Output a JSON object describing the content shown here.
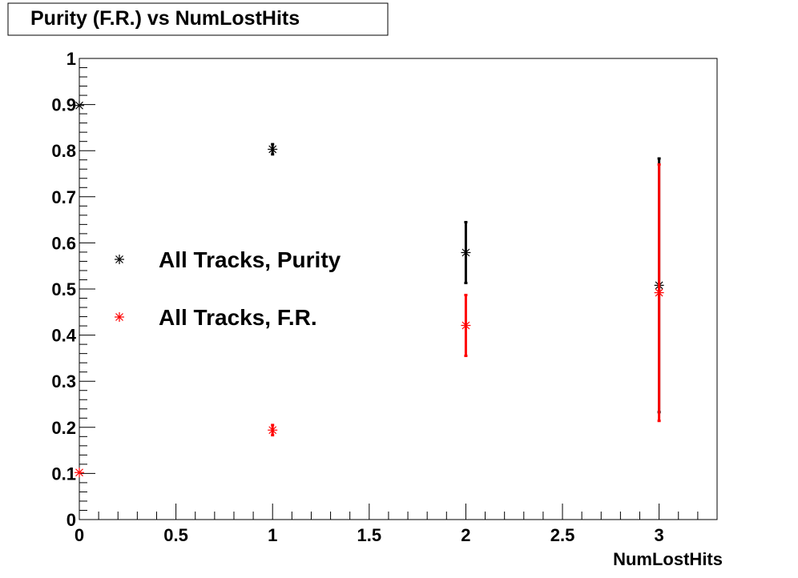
{
  "chart_data": {
    "type": "scatter",
    "title": "Purity (F.R.) vs NumLostHits",
    "xlabel": "NumLostHits",
    "ylabel": "",
    "xlim": [
      0,
      3.3
    ],
    "ylim": [
      0,
      1
    ],
    "x_ticks": [
      0,
      0.5,
      1,
      1.5,
      2,
      2.5,
      3
    ],
    "x_tick_labels": [
      "0",
      "0.5",
      "1",
      "1.5",
      "2",
      "2.5",
      "3"
    ],
    "y_ticks": [
      0,
      0.1,
      0.2,
      0.3,
      0.4,
      0.5,
      0.6,
      0.7,
      0.8,
      0.9,
      1
    ],
    "y_tick_labels": [
      "0",
      "0.1",
      "0.2",
      "0.3",
      "0.4",
      "0.5",
      "0.6",
      "0.7",
      "0.8",
      "0.9",
      "1"
    ],
    "grid": false,
    "legend_position": "middle-left",
    "marker": "asterisk",
    "series": [
      {
        "name": "All Tracks, Purity",
        "color": "#000000",
        "points": [
          {
            "x": 0,
            "y": 0.898,
            "err": 0.0
          },
          {
            "x": 1,
            "y": 0.803,
            "err": 0.011
          },
          {
            "x": 2,
            "y": 0.579,
            "err": 0.066
          },
          {
            "x": 3,
            "y": 0.508,
            "err": 0.275
          }
        ]
      },
      {
        "name": "All Tracks, F.R.",
        "color": "#ff0000",
        "points": [
          {
            "x": 0,
            "y": 0.102,
            "err": 0.0
          },
          {
            "x": 1,
            "y": 0.194,
            "err": 0.011
          },
          {
            "x": 2,
            "y": 0.421,
            "err": 0.066
          },
          {
            "x": 3,
            "y": 0.492,
            "err": 0.278
          }
        ]
      }
    ]
  }
}
